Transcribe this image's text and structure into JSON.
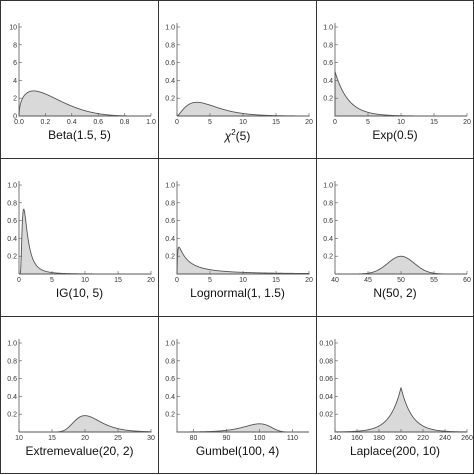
{
  "chart_data": [
    {
      "type": "area",
      "title": "Beta(1.5, 5)",
      "dist": "beta",
      "params": [
        1.5,
        5
      ],
      "xlim": [
        0,
        1
      ],
      "ylim": [
        0,
        10
      ],
      "xticks": [
        "0.0",
        "0.2",
        "0.4",
        "0.6",
        "0.8",
        "1.0"
      ],
      "yticks": [
        "0",
        "2",
        "4",
        "6",
        "8",
        "10"
      ]
    },
    {
      "type": "area",
      "title": "χ",
      "title_sup": "2",
      "title_suffix": "(5)",
      "dist": "chisq",
      "params": [
        5
      ],
      "xlim": [
        0,
        20
      ],
      "ylim": [
        0,
        1.0
      ],
      "xticks": [
        "0",
        "5",
        "10",
        "15",
        "20"
      ],
      "yticks": [
        "0.2",
        "0.4",
        "0.6",
        "0.8",
        "1.0"
      ]
    },
    {
      "type": "area",
      "title": "Exp(0.5)",
      "dist": "exp",
      "params": [
        0.5
      ],
      "xlim": [
        0,
        20
      ],
      "ylim": [
        0,
        1.0
      ],
      "xticks": [
        "0",
        "5",
        "10",
        "15",
        "20"
      ],
      "yticks": [
        "0.2",
        "0.4",
        "0.6",
        "0.8",
        "1.0"
      ]
    },
    {
      "type": "area",
      "title": "IG(10, 5)",
      "dist": "invgamma",
      "params": [
        10,
        5
      ],
      "xlim": [
        0,
        20
      ],
      "ylim": [
        0,
        1.0
      ],
      "xticks": [
        "0",
        "5",
        "10",
        "15",
        "20"
      ],
      "yticks": [
        "0.2",
        "0.4",
        "0.6",
        "0.8",
        "1.0"
      ]
    },
    {
      "type": "area",
      "title": "Lognormal(1, 1.5)",
      "dist": "lognormal",
      "params": [
        1,
        1.5
      ],
      "xlim": [
        0,
        20
      ],
      "ylim": [
        0,
        1.0
      ],
      "xticks": [
        "0",
        "5",
        "10",
        "15",
        "20"
      ],
      "yticks": [
        "0.2",
        "0.4",
        "0.6",
        "0.8",
        "1.0"
      ]
    },
    {
      "type": "area",
      "title": "N(50, 2)",
      "dist": "normal",
      "params": [
        50,
        2
      ],
      "xlim": [
        40,
        60
      ],
      "ylim": [
        0,
        1.0
      ],
      "xticks": [
        "40",
        "45",
        "50",
        "55",
        "60"
      ],
      "yticks": [
        "0.2",
        "0.4",
        "0.6",
        "0.8",
        "1.0"
      ]
    },
    {
      "type": "area",
      "title": "Extremevalue(20, 2)",
      "dist": "extremevalue",
      "params": [
        20,
        2
      ],
      "xlim": [
        10,
        30
      ],
      "ylim": [
        0,
        1.0
      ],
      "xticks": [
        "10",
        "15",
        "20",
        "25",
        "30"
      ],
      "yticks": [
        "0.2",
        "0.4",
        "0.6",
        "0.8",
        "1.0"
      ]
    },
    {
      "type": "area",
      "title": "Gumbel(100, 4)",
      "dist": "gumbel",
      "params": [
        100,
        4
      ],
      "xlim": [
        75,
        115
      ],
      "ylim": [
        0,
        1.0
      ],
      "xticks": [
        "80",
        "90",
        "100",
        "110"
      ],
      "yticks": [
        "0.2",
        "0.4",
        "0.6",
        "0.8",
        "1.0"
      ]
    },
    {
      "type": "area",
      "title": "Laplace(200, 10)",
      "dist": "laplace",
      "params": [
        200,
        10
      ],
      "xlim": [
        140,
        260
      ],
      "ylim": [
        0,
        0.1
      ],
      "xticks": [
        "140",
        "160",
        "180",
        "200",
        "220",
        "240",
        "260"
      ],
      "yticks": [
        "0.02",
        "0.04",
        "0.06",
        "0.08",
        "0.10"
      ]
    }
  ]
}
